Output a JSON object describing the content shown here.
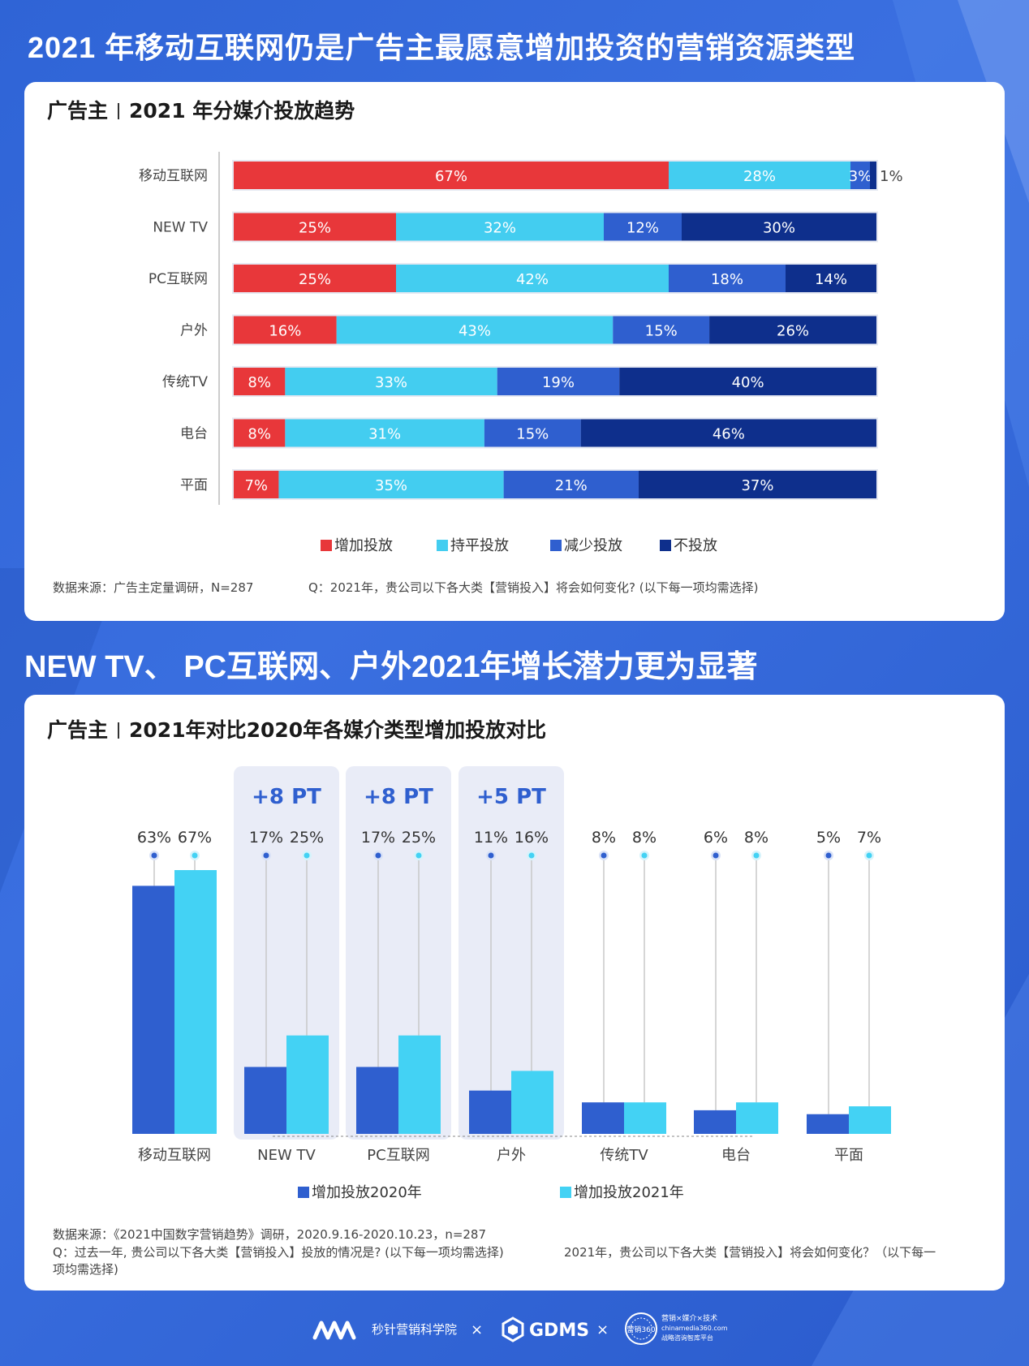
{
  "header": {
    "title": "2021 年移动互联网仍是广告主最愿意增加投资的营销资源类型",
    "section2_title": "NEW TV、 PC互联网、户外2021年增长潜力更为显著"
  },
  "colors": {
    "increase": "#e8373a",
    "keep": "#43cdf0",
    "decrease": "#2f5fcf",
    "none": "#0e2f8c",
    "bar2020": "#2f5fcf",
    "bar2021": "#43d2f4"
  },
  "panel1": {
    "title_left": "广告主",
    "title_right": "2021 年分媒介投放趋势",
    "source": "数据来源：广告主定量调研，N=287",
    "question": "Q：2021年，贵公司以下各大类【营销投入】将会如何变化? (以下每一项均需选择)"
  },
  "panel2": {
    "title_left": "广告主",
    "title_right": "2021年对比2020年各媒介类型增加投放对比",
    "source": "数据来源：《2021中国数字营销趋势》调研，2020.9.16-2020.10.23，n=287",
    "question_a": "Q：过去一年, 贵公司以下各大类【营销投入】投放的情况是? (以下每一项均需选择)",
    "question_b": "2021年，贵公司以下各大类【营销投入】将会如何变化？（以下每一",
    "question_c": "项均需选择)"
  },
  "footer": {
    "brand1": "秒针营销科学院",
    "x1": "×",
    "brand2": "GDMS",
    "x2": "×",
    "brand3_top": "营销×媒介×技术",
    "brand3_mid": "chinamedia360.com",
    "brand3_bot": "战略咨询智库平台",
    "seal": "营销360"
  },
  "chart_data": [
    {
      "type": "bar",
      "orientation": "horizontal",
      "stacked": true,
      "categories": [
        "移动互联网",
        "NEW TV",
        "PC互联网",
        "户外",
        "传统TV",
        "电台",
        "平面"
      ],
      "series": [
        {
          "name": "增加投放",
          "values": [
            67,
            25,
            25,
            16,
            8,
            8,
            7
          ]
        },
        {
          "name": "持平投放",
          "values": [
            28,
            32,
            42,
            43,
            33,
            31,
            35
          ]
        },
        {
          "name": "减少投放",
          "values": [
            3,
            12,
            18,
            15,
            19,
            15,
            21
          ]
        },
        {
          "name": "不投放",
          "values": [
            1,
            30,
            14,
            26,
            40,
            46,
            37
          ]
        }
      ],
      "labels": [
        [
          "67%",
          "28%",
          "3%",
          "1%"
        ],
        [
          "25%",
          "32%",
          "12%",
          "30%"
        ],
        [
          "25%",
          "42%",
          "18%",
          "14%"
        ],
        [
          "16%",
          "43%",
          "15%",
          "26%"
        ],
        [
          "8%",
          "33%",
          "19%",
          "40%"
        ],
        [
          "8%",
          "31%",
          "15%",
          "46%"
        ],
        [
          "7%",
          "35%",
          "21%",
          "37%"
        ]
      ],
      "legend_position": "bottom"
    },
    {
      "type": "bar",
      "categories": [
        "移动互联网",
        "NEW TV",
        "PC互联网",
        "户外",
        "传统TV",
        "电台",
        "平面"
      ],
      "series": [
        {
          "name": "增加投放2020年",
          "values": [
            63,
            17,
            17,
            11,
            8,
            6,
            5
          ],
          "labels": [
            "63%",
            "17%",
            "17%",
            "11%",
            "8%",
            "6%",
            "5%"
          ]
        },
        {
          "name": "增加投放2021年",
          "values": [
            67,
            25,
            25,
            16,
            8,
            8,
            7
          ],
          "labels": [
            "67%",
            "25%",
            "25%",
            "16%",
            "8%",
            "8%",
            "7%"
          ]
        }
      ],
      "highlights": [
        {
          "category": "NEW TV",
          "label": "+8 PT"
        },
        {
          "category": "PC互联网",
          "label": "+8 PT"
        },
        {
          "category": "户外",
          "label": "+5 PT"
        }
      ],
      "legend_position": "bottom"
    }
  ]
}
